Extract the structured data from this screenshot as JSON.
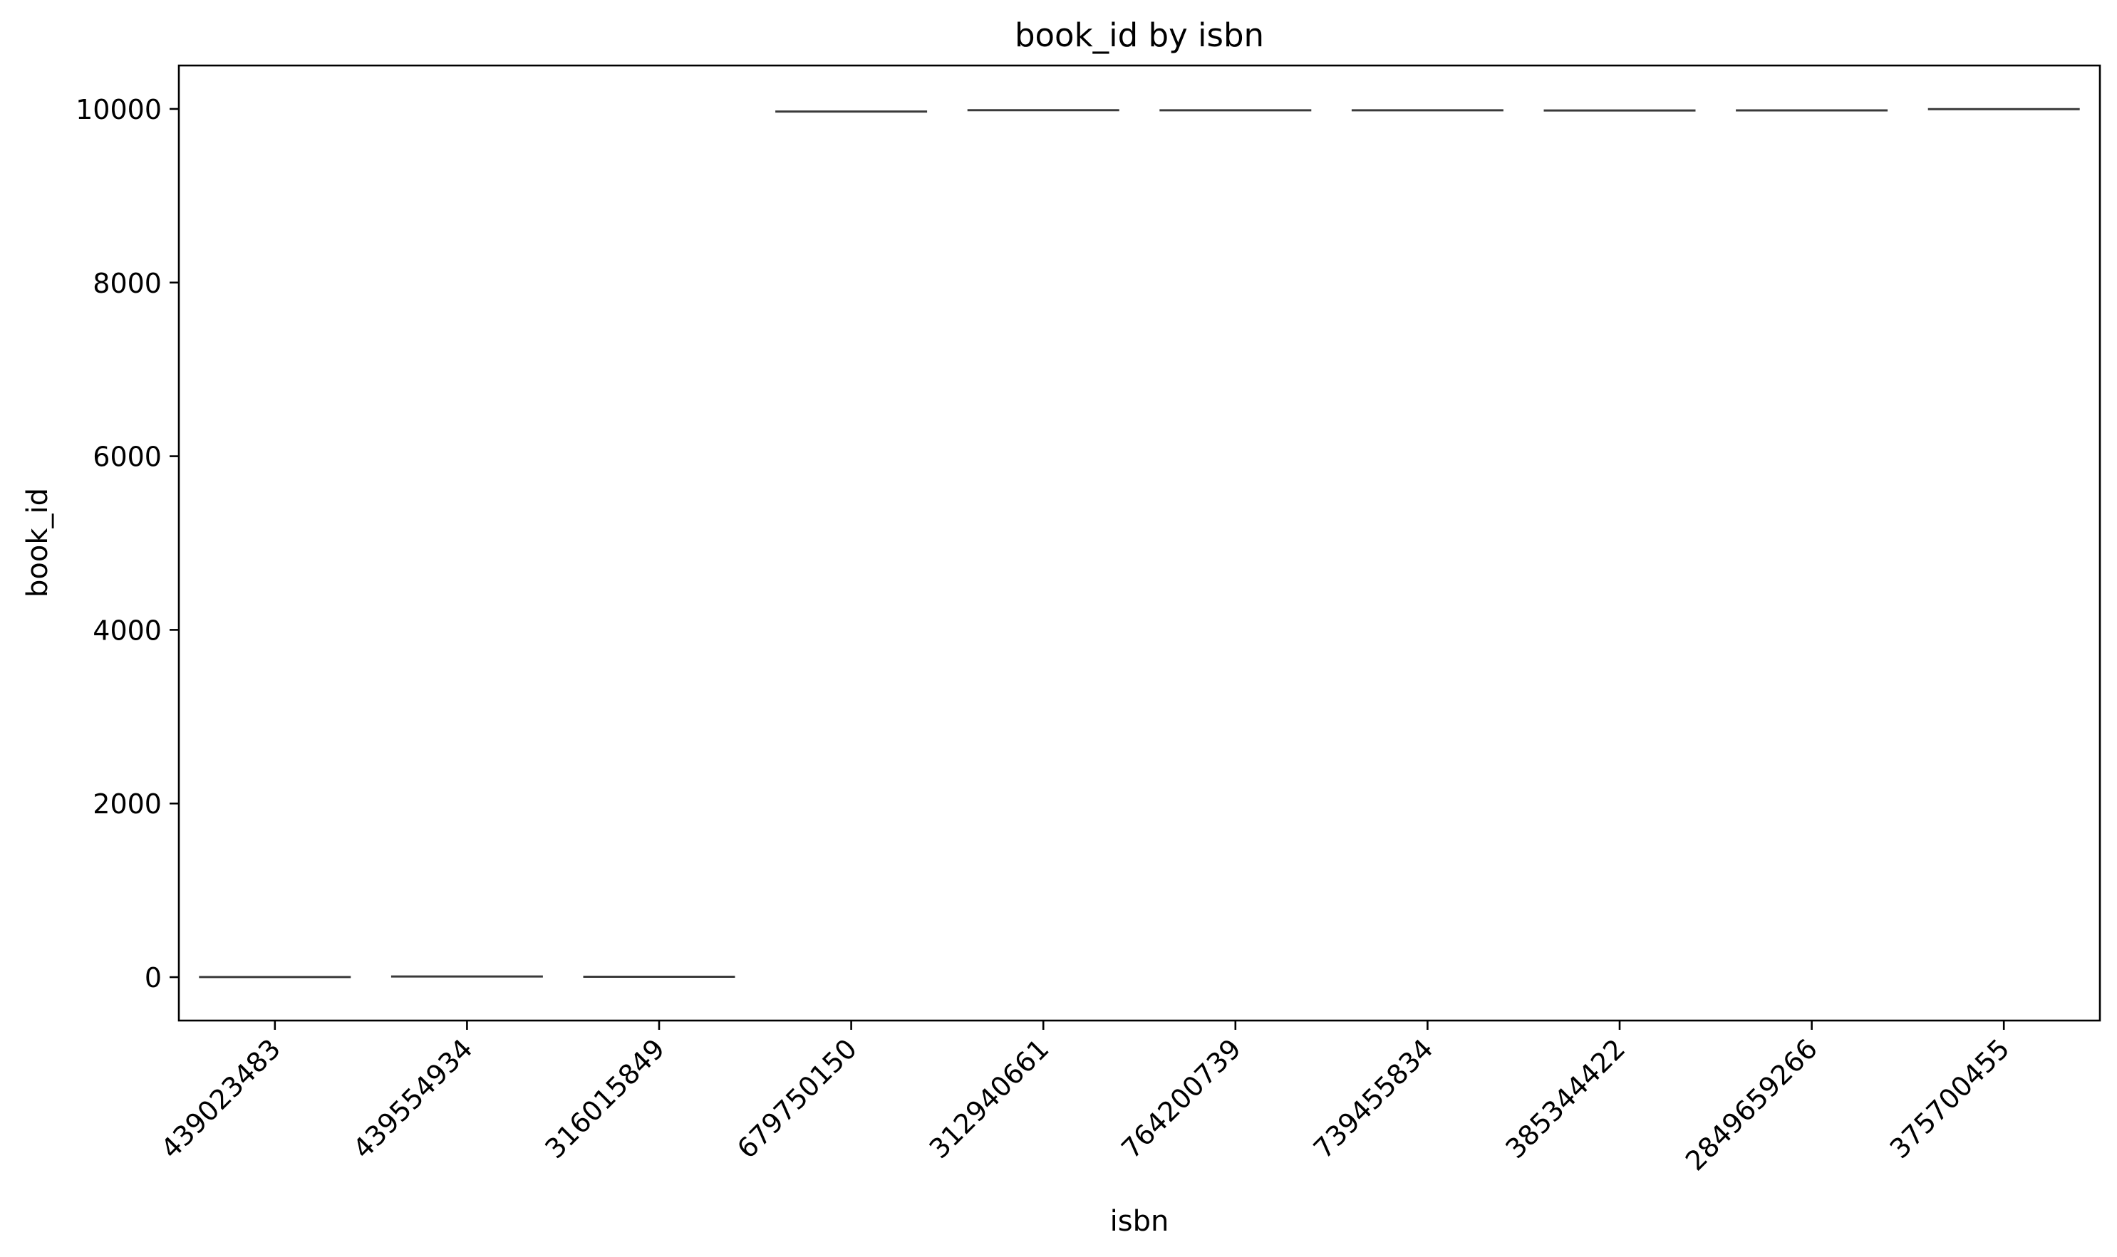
{
  "chart_data": {
    "type": "box",
    "title": "book_id by isbn",
    "xlabel": "isbn",
    "ylabel": "book_id",
    "categories": [
      "439023483",
      "439554934",
      "316015849",
      "679750150",
      "312940661",
      "764200739",
      "739455834",
      "385344422",
      "2849659266",
      "375700455"
    ],
    "values": [
      1,
      8,
      4,
      9970,
      9985,
      9984,
      9984,
      9982,
      9983,
      9998
    ],
    "ylim": [
      -500,
      10500
    ],
    "yticks": [
      0,
      2000,
      4000,
      6000,
      8000,
      10000
    ],
    "grid": false,
    "colors": {
      "median": "#3a3a3a",
      "axes": "#000000"
    }
  }
}
